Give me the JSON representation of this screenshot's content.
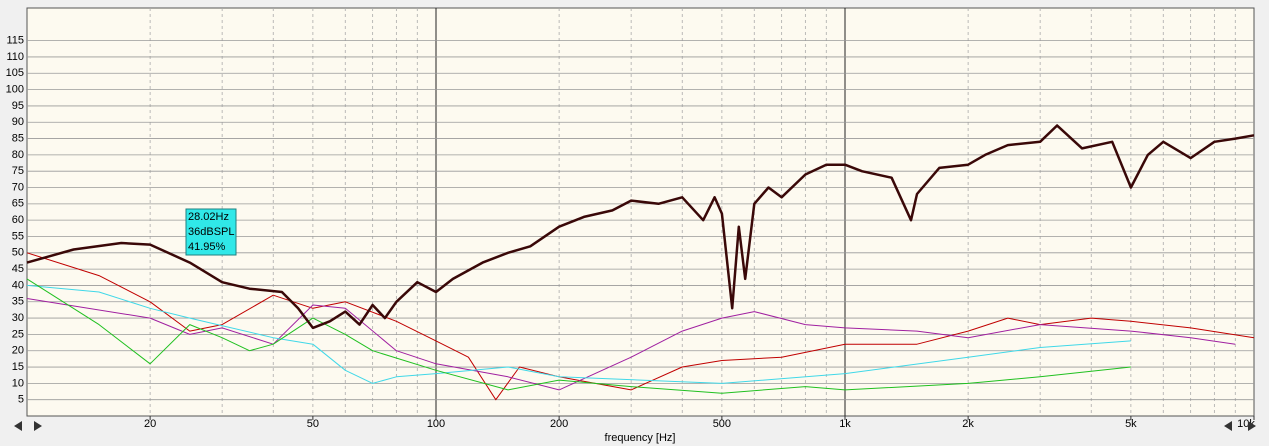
{
  "chart_data": {
    "type": "line",
    "x_label": "frequency [Hz]",
    "log_x": true,
    "grid": true,
    "xlim": [
      10,
      10000
    ],
    "ylim": [
      0,
      125
    ],
    "xticks": [
      20,
      50,
      100,
      200,
      500,
      {
        "value": 1000,
        "label": "1k"
      },
      {
        "value": 2000,
        "label": "2k"
      },
      {
        "value": 5000,
        "label": "5k"
      },
      {
        "value": 10000,
        "label": "10k"
      }
    ],
    "yticks": [
      5,
      10,
      15,
      20,
      25,
      30,
      35,
      40,
      45,
      50,
      55,
      60,
      65,
      70,
      75,
      80,
      85,
      90,
      95,
      100,
      105,
      110,
      115
    ],
    "cursor_label": [
      "28.02Hz",
      "36dBSPL",
      "41.95%"
    ],
    "series": [
      {
        "color": "#c00000",
        "width": 1,
        "x": [
          10,
          15,
          20,
          25,
          30,
          40,
          50,
          60,
          80,
          100,
          120,
          140,
          160,
          200,
          300,
          400,
          500,
          700,
          1000,
          1500,
          2000,
          2500,
          3000,
          4000,
          5000,
          7000,
          10000
        ],
        "values": [
          50,
          43,
          35,
          26,
          28,
          37,
          33,
          35,
          29,
          23,
          18,
          5,
          15,
          12,
          8,
          15,
          17,
          18,
          22,
          22,
          26,
          30,
          28,
          30,
          29,
          27,
          24
        ]
      },
      {
        "color": "#a020a0",
        "width": 1,
        "x": [
          10,
          20,
          25,
          30,
          40,
          50,
          60,
          80,
          100,
          150,
          200,
          300,
          400,
          500,
          600,
          800,
          1000,
          1500,
          2000,
          3000,
          5000,
          7000,
          9000
        ],
        "values": [
          36,
          30,
          25,
          27,
          22,
          34,
          33,
          20,
          16,
          12,
          8,
          18,
          26,
          30,
          32,
          28,
          27,
          26,
          24,
          28,
          26,
          24,
          22
        ]
      },
      {
        "color": "#40d8e8",
        "width": 1,
        "x": [
          10,
          15,
          20,
          25,
          40,
          50,
          60,
          70,
          80,
          100,
          150,
          200,
          500,
          1000,
          2000,
          3000,
          5000
        ],
        "values": [
          40,
          38,
          33,
          30,
          24,
          22,
          14,
          10,
          12,
          13,
          15,
          12,
          10,
          13,
          18,
          21,
          23
        ]
      },
      {
        "color": "#20c020",
        "width": 1,
        "x": [
          10,
          15,
          20,
          25,
          30,
          35,
          40,
          50,
          60,
          70,
          100,
          150,
          200,
          300,
          500,
          800,
          1000,
          2000,
          3000,
          5000
        ],
        "values": [
          42,
          28,
          16,
          28,
          24,
          20,
          22,
          30,
          25,
          20,
          14,
          8,
          11,
          9,
          7,
          9,
          8,
          10,
          12,
          15
        ]
      },
      {
        "color": "#3a0808",
        "width": 2.5,
        "x": [
          10,
          13,
          17,
          20,
          25,
          30,
          35,
          42,
          46,
          50,
          55,
          60,
          65,
          70,
          75,
          80,
          90,
          100,
          110,
          130,
          150,
          170,
          200,
          230,
          270,
          300,
          350,
          400,
          450,
          480,
          500,
          530,
          550,
          570,
          600,
          650,
          700,
          800,
          900,
          1000,
          1100,
          1300,
          1450,
          1500,
          1700,
          2000,
          2200,
          2500,
          3000,
          3300,
          3800,
          4500,
          5000,
          5500,
          6000,
          7000,
          8000,
          9000,
          10000
        ],
        "values": [
          47,
          51,
          53,
          52.5,
          47,
          41,
          39,
          38,
          33,
          27,
          29,
          32,
          28,
          34,
          30,
          35,
          41,
          38,
          42,
          47,
          50,
          52,
          58,
          61,
          63,
          66,
          65,
          67,
          60,
          67,
          62,
          33,
          58,
          42,
          65,
          70,
          67,
          74,
          77,
          77,
          75,
          73,
          60,
          68,
          76,
          77,
          80,
          83,
          84,
          89,
          82,
          84,
          70,
          80,
          84,
          79,
          84,
          85,
          86
        ]
      }
    ]
  }
}
